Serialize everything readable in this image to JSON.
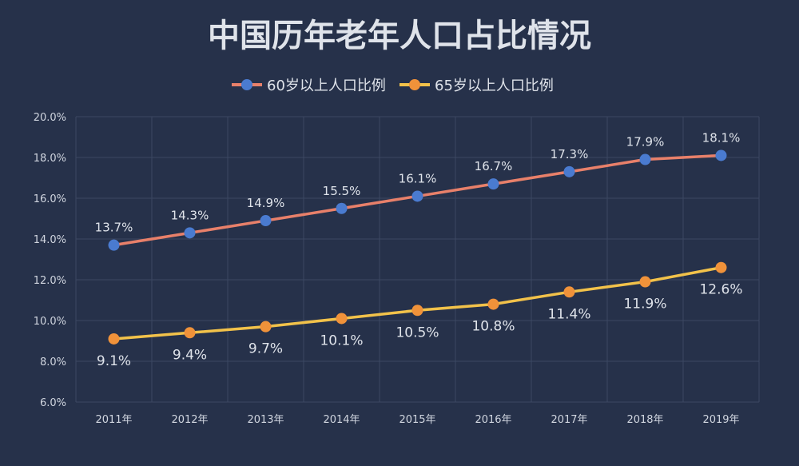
{
  "chart_data": {
    "type": "line",
    "title": "中国历年老年人口占比情况",
    "categories": [
      "2011年",
      "2012年",
      "2013年",
      "2014年",
      "2015年",
      "2016年",
      "2017年",
      "2018年",
      "2019年"
    ],
    "series": [
      {
        "name": "60岁以上人口比例",
        "values": [
          13.7,
          14.3,
          14.9,
          15.5,
          16.1,
          16.7,
          17.3,
          17.9,
          18.1
        ],
        "line_color": "#e8806a",
        "marker_color": "#4a7bd0",
        "label_position": "above"
      },
      {
        "name": "65岁以上人口比例",
        "values": [
          9.1,
          9.4,
          9.7,
          10.1,
          10.5,
          10.8,
          11.4,
          11.9,
          12.6
        ],
        "line_color": "#f2c24a",
        "marker_color": "#f0923a",
        "label_position": "below"
      }
    ],
    "ylim": [
      6,
      20
    ],
    "yticks": [
      "6.0%",
      "8.0%",
      "10.0%",
      "12.0%",
      "14.0%",
      "16.0%",
      "18.0%",
      "20.0%"
    ],
    "grid": true,
    "legend": "top-center",
    "background": "#26314a",
    "text_color": "#d8dce6"
  }
}
